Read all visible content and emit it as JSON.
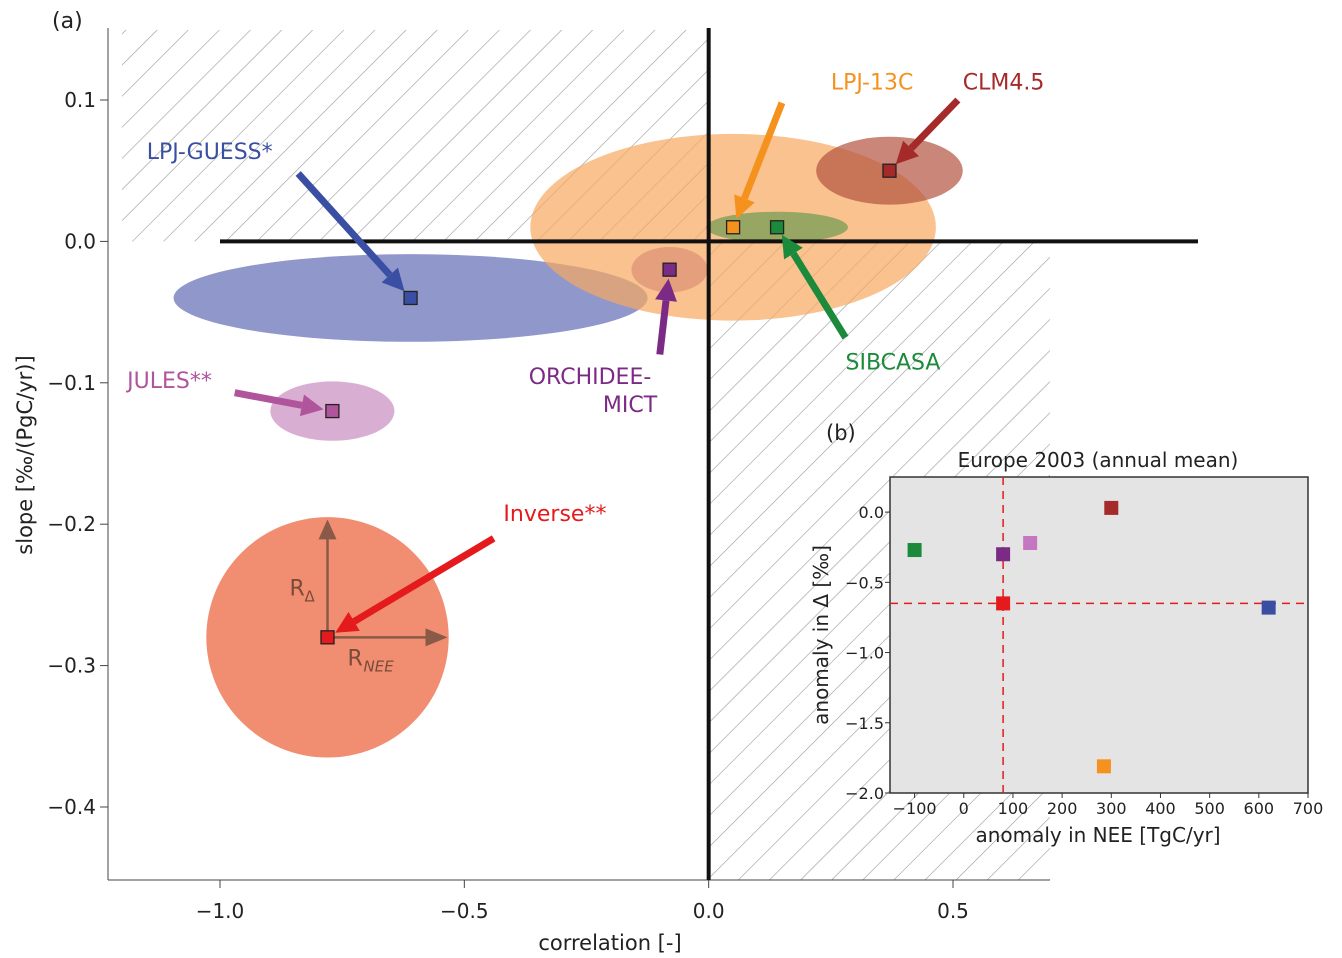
{
  "chart_data": [
    {
      "type": "scatter",
      "panel_label": "(a)",
      "xlabel": "correlation [-]",
      "ylabel": "slope [‰/(PgC/yr)]",
      "xlim": [
        -1.2,
        0.6
      ],
      "ylim": [
        -0.45,
        0.15
      ],
      "xticks": [
        -1.0,
        -0.5,
        0.0,
        0.5
      ],
      "xtick_labels": [
        "−1.0",
        "−0.5",
        "0.0",
        "0.5"
      ],
      "yticks": [
        0.1,
        0.0,
        -0.1,
        -0.2,
        -0.3,
        -0.4
      ],
      "ytick_labels": [
        "0.1",
        "0.0",
        "−0.1",
        "−0.2",
        "−0.3",
        "−0.4"
      ],
      "grid": false,
      "hatched_regions": [
        "upper-left quadrant",
        "lower-right quadrant"
      ],
      "series": [
        {
          "name": "LPJ-GUESS*",
          "color": "#3a4fa3",
          "fill": "#5f6bb5",
          "x": -0.61,
          "y": -0.04,
          "rx": 0.485,
          "ry": 0.031,
          "label_x": -1.15,
          "label_y": 0.064,
          "arrow_from_x": -0.84,
          "arrow_from_y": 0.048
        },
        {
          "name": "JULES**",
          "color": "#b0559c",
          "fill": "#c98cc0",
          "x": -0.77,
          "y": -0.12,
          "rx": 0.127,
          "ry": 0.021,
          "label_x": -1.19,
          "label_y": -0.098,
          "arrow_from_x": -0.97,
          "arrow_from_y": -0.107
        },
        {
          "name": "Inverse**",
          "color": "#e41a1c",
          "fill": "#ee7a58",
          "x": -0.78,
          "y": -0.28,
          "rx": 0.248,
          "ry": 0.085,
          "label_x": -0.42,
          "label_y": -0.192,
          "arrow_from_x": -0.44,
          "arrow_from_y": -0.21
        },
        {
          "name": "ORCHIDEE-MICT",
          "label_lines": [
            "ORCHIDEE-",
            "MICT"
          ],
          "color": "#7b2b86",
          "fill": "#a45aa8",
          "x": -0.08,
          "y": -0.02,
          "rx": 0.078,
          "ry": 0.016,
          "label_x": -0.1,
          "label_y": -0.098,
          "arrow_from_x": -0.1,
          "arrow_from_y": -0.08
        },
        {
          "name": "LPJ-13C",
          "color": "#f5921e",
          "fill": "#f6a860",
          "x": 0.05,
          "y": 0.01,
          "rx": 0.415,
          "ry": 0.066,
          "label_x": 0.25,
          "label_y": 0.113,
          "arrow_from_x": 0.15,
          "arrow_from_y": 0.098
        },
        {
          "name": "SIBCASA",
          "color": "#1b8a3b",
          "fill": "#6e9a4e",
          "x": 0.14,
          "y": 0.01,
          "rx": 0.145,
          "ry": 0.011,
          "label_x": 0.28,
          "label_y": -0.085,
          "arrow_from_x": 0.28,
          "arrow_from_y": -0.068
        },
        {
          "name": "CLM4.5",
          "color": "#a52a2a",
          "fill": "#b4523e",
          "x": 0.37,
          "y": 0.05,
          "rx": 0.15,
          "ry": 0.024,
          "label_x": 0.52,
          "label_y": 0.113,
          "arrow_from_x": 0.51,
          "arrow_from_y": 0.1
        }
      ],
      "annotations": {
        "r_delta": "R",
        "r_delta_sub": "Δ",
        "r_nee": "R",
        "r_nee_sub": "NEE"
      }
    },
    {
      "type": "scatter",
      "panel_label": "(b)",
      "title": "Europe 2003 (annual mean)",
      "xlabel": "anomaly in NEE [TgC/yr]",
      "ylabel": "anomaly in Δ [‰]",
      "xlim": [
        -150,
        700
      ],
      "ylim": [
        -2.0,
        0.25
      ],
      "xticks": [
        -100,
        0,
        100,
        200,
        300,
        400,
        500,
        600,
        700
      ],
      "xtick_labels": [
        "−100",
        "0",
        "100",
        "200",
        "300",
        "400",
        "500",
        "600",
        "700"
      ],
      "yticks": [
        0.0,
        -0.5,
        -1.0,
        -1.5,
        -2.0
      ],
      "ytick_labels": [
        "0.0",
        "−0.5",
        "−1.0",
        "−1.5",
        "−2.0"
      ],
      "background": "#e4e4e4",
      "reference_lines": {
        "x": 80,
        "y": -0.65,
        "color": "#e41a1c"
      },
      "points": [
        {
          "x": -100,
          "y": -0.27,
          "color": "#1b8a3b"
        },
        {
          "x": 80,
          "y": -0.3,
          "color": "#7b2b86"
        },
        {
          "x": 135,
          "y": -0.22,
          "color": "#c576c0"
        },
        {
          "x": 300,
          "y": 0.03,
          "color": "#a52a2a"
        },
        {
          "x": 80,
          "y": -0.65,
          "color": "#e41a1c"
        },
        {
          "x": 620,
          "y": -0.68,
          "color": "#3a4fa3"
        },
        {
          "x": 285,
          "y": -1.81,
          "color": "#f5921e"
        }
      ]
    }
  ]
}
